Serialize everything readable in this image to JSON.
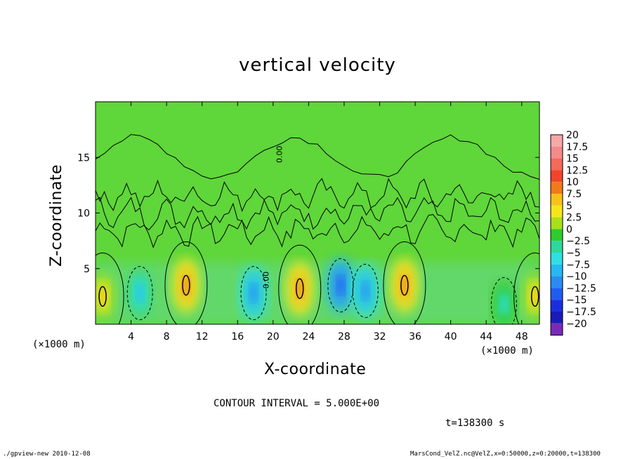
{
  "chart_data": {
    "type": "heatmap",
    "title": "vertical velocity",
    "xlabel": "X-coordinate",
    "ylabel": "Z-coordinate",
    "x_unit_label": "(×1000 m)",
    "xlim": [
      0,
      50
    ],
    "ylim": [
      0,
      20
    ],
    "x_ticks": [
      4,
      8,
      12,
      16,
      20,
      24,
      28,
      32,
      36,
      40,
      44,
      48
    ],
    "y_ticks": [
      5,
      10,
      15
    ],
    "colorbar": {
      "levels": [
        "20",
        "17.5",
        "15",
        "12.5",
        "10",
        "7.5",
        "5",
        "2.5",
        "0",
        "−2.5",
        "−5",
        "−7.5",
        "−10",
        "−12.5",
        "−15",
        "−17.5",
        "−20"
      ],
      "colors": [
        "#f7a8a8",
        "#f58a8a",
        "#f26a5a",
        "#f2442a",
        "#f27a1a",
        "#f5c21a",
        "#f5e61a",
        "#a8e01a",
        "#2ecc2e",
        "#2ed89a",
        "#2ee0e0",
        "#26b8f0",
        "#2a8cf0",
        "#1f5cf0",
        "#1a2ee0",
        "#1a1ab8",
        "#7a2ab8"
      ]
    },
    "contour_label": "0.00",
    "updrafts_km": [
      {
        "x": 0.8,
        "z": 2.5,
        "w": 7.5
      },
      {
        "x": 10.2,
        "z": 3.5,
        "w": 10
      },
      {
        "x": 23.0,
        "z": 3.2,
        "w": 10
      },
      {
        "x": 34.8,
        "z": 3.5,
        "w": 10
      },
      {
        "x": 49.5,
        "z": 2.5,
        "w": 7.5
      }
    ],
    "downdrafts_km": [
      {
        "x": 5.0,
        "z": 2.8,
        "w": -7.5
      },
      {
        "x": 17.8,
        "z": 2.8,
        "w": -10
      },
      {
        "x": 27.6,
        "z": 3.5,
        "w": -12.5
      },
      {
        "x": 30.4,
        "z": 3.0,
        "w": -10
      },
      {
        "x": 46.0,
        "z": 1.8,
        "w": -5
      }
    ]
  },
  "contour_interval": "CONTOUR INTERVAL = 5.000E+00",
  "time_label": "t=138300 s",
  "footer_left": "./gpview-new  2010-12-08",
  "footer_right": "MarsCond_VelZ.nc@VelZ,x=0:50000,z=0:20000,t=138300"
}
